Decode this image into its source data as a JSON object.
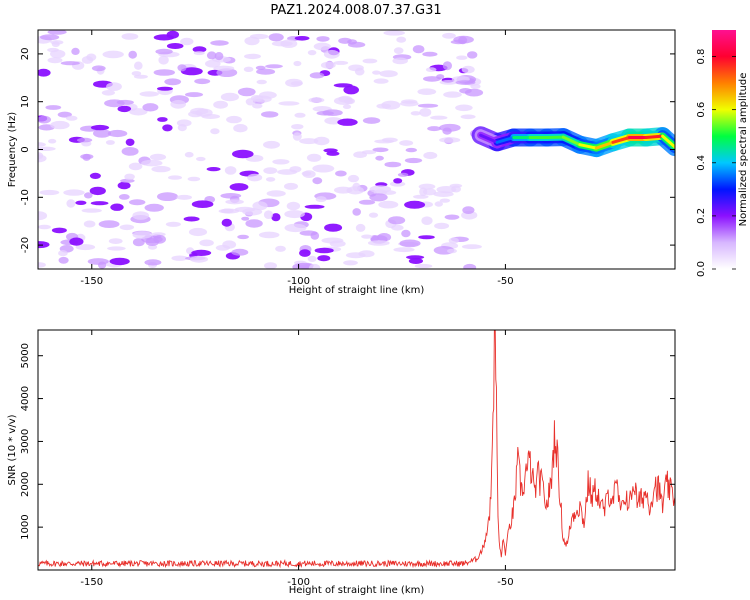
{
  "title": "PAZ1.2024.008.07.37.G31",
  "chart_data": [
    {
      "type": "heatmap",
      "xlabel": "Height of straight line (km)",
      "ylabel": "Frequency (Hz)",
      "xlim": [
        -163,
        -9
      ],
      "ylim": [
        -25,
        25
      ],
      "x_ticks": [
        -150,
        -100,
        -50
      ],
      "y_ticks": [
        -20,
        -10,
        0,
        10,
        20
      ],
      "colorbar": {
        "label": "Normalized spectral amplitude",
        "range": [
          0.0,
          0.9
        ],
        "ticks": [
          0.0,
          0.2,
          0.4,
          0.6,
          0.8
        ],
        "colormap": [
          "#ffffff",
          "#d7b6ff",
          "#8b10ff",
          "#0015ff",
          "#00c8ff",
          "#00ff40",
          "#f0ff00",
          "#ff8000",
          "#ff0030",
          "#ff1090"
        ]
      },
      "noise_region": {
        "x": [
          -163,
          -57
        ],
        "y": [
          -25,
          25
        ],
        "amplitude": "low (0.05-0.25)"
      },
      "signal_track": {
        "x": [
          -56,
          -52,
          -48,
          -44,
          -40,
          -36,
          -32,
          -28,
          -24,
          -20,
          -16,
          -12,
          -9
        ],
        "y": [
          3.0,
          1.5,
          2.5,
          2.5,
          2.5,
          2.6,
          1.0,
          0.3,
          1.5,
          2.5,
          2.5,
          2.8,
          0.5
        ],
        "amplitude": [
          0.2,
          0.25,
          0.45,
          0.5,
          0.55,
          0.5,
          0.6,
          0.6,
          0.7,
          0.8,
          0.85,
          0.7,
          0.5
        ]
      }
    },
    {
      "type": "line",
      "xlabel": "Height of straight line (km)",
      "ylabel": "SNR (10 * v/v)",
      "xlim": [
        -163,
        -9
      ],
      "ylim": [
        0,
        5600
      ],
      "x_ticks": [
        -150,
        -100,
        -50
      ],
      "y_ticks": [
        1000,
        2000,
        3000,
        4000,
        5000
      ],
      "color": "#e8302b",
      "series": [
        {
          "x": [
            -163,
            -60,
            -57,
            -55.5,
            -54.5,
            -53.5,
            -53,
            -52.5,
            -52,
            -51.8,
            -51.5,
            -51,
            -50.5,
            -50,
            -49,
            -48,
            -47,
            -46,
            -45,
            -44,
            -43,
            -42,
            -41,
            -40,
            -39,
            -38,
            -37,
            -36,
            -35,
            -34,
            -33,
            -32,
            -31,
            -30,
            -29,
            -28,
            -27,
            -26,
            -25,
            -24,
            -23,
            -22,
            -21,
            -20,
            -19,
            -18,
            -17,
            -16,
            -15,
            -14,
            -13,
            -12,
            -11,
            -10,
            -9
          ],
          "y": [
            150,
            150,
            250,
            500,
            900,
            1600,
            3900,
            5600,
            2800,
            1200,
            600,
            350,
            700,
            400,
            1000,
            1400,
            2450,
            1800,
            2300,
            2500,
            1800,
            2200,
            1900,
            1500,
            2000,
            3300,
            2000,
            700,
            600,
            1200,
            1400,
            1500,
            1100,
            2000,
            1700,
            1900,
            1500,
            1400,
            1800,
            1700,
            1900,
            1300,
            1800,
            1500,
            2100,
            1500,
            1700,
            1800,
            1500,
            2000,
            1900,
            1500,
            2000,
            1800,
            1700
          ]
        }
      ]
    }
  ]
}
